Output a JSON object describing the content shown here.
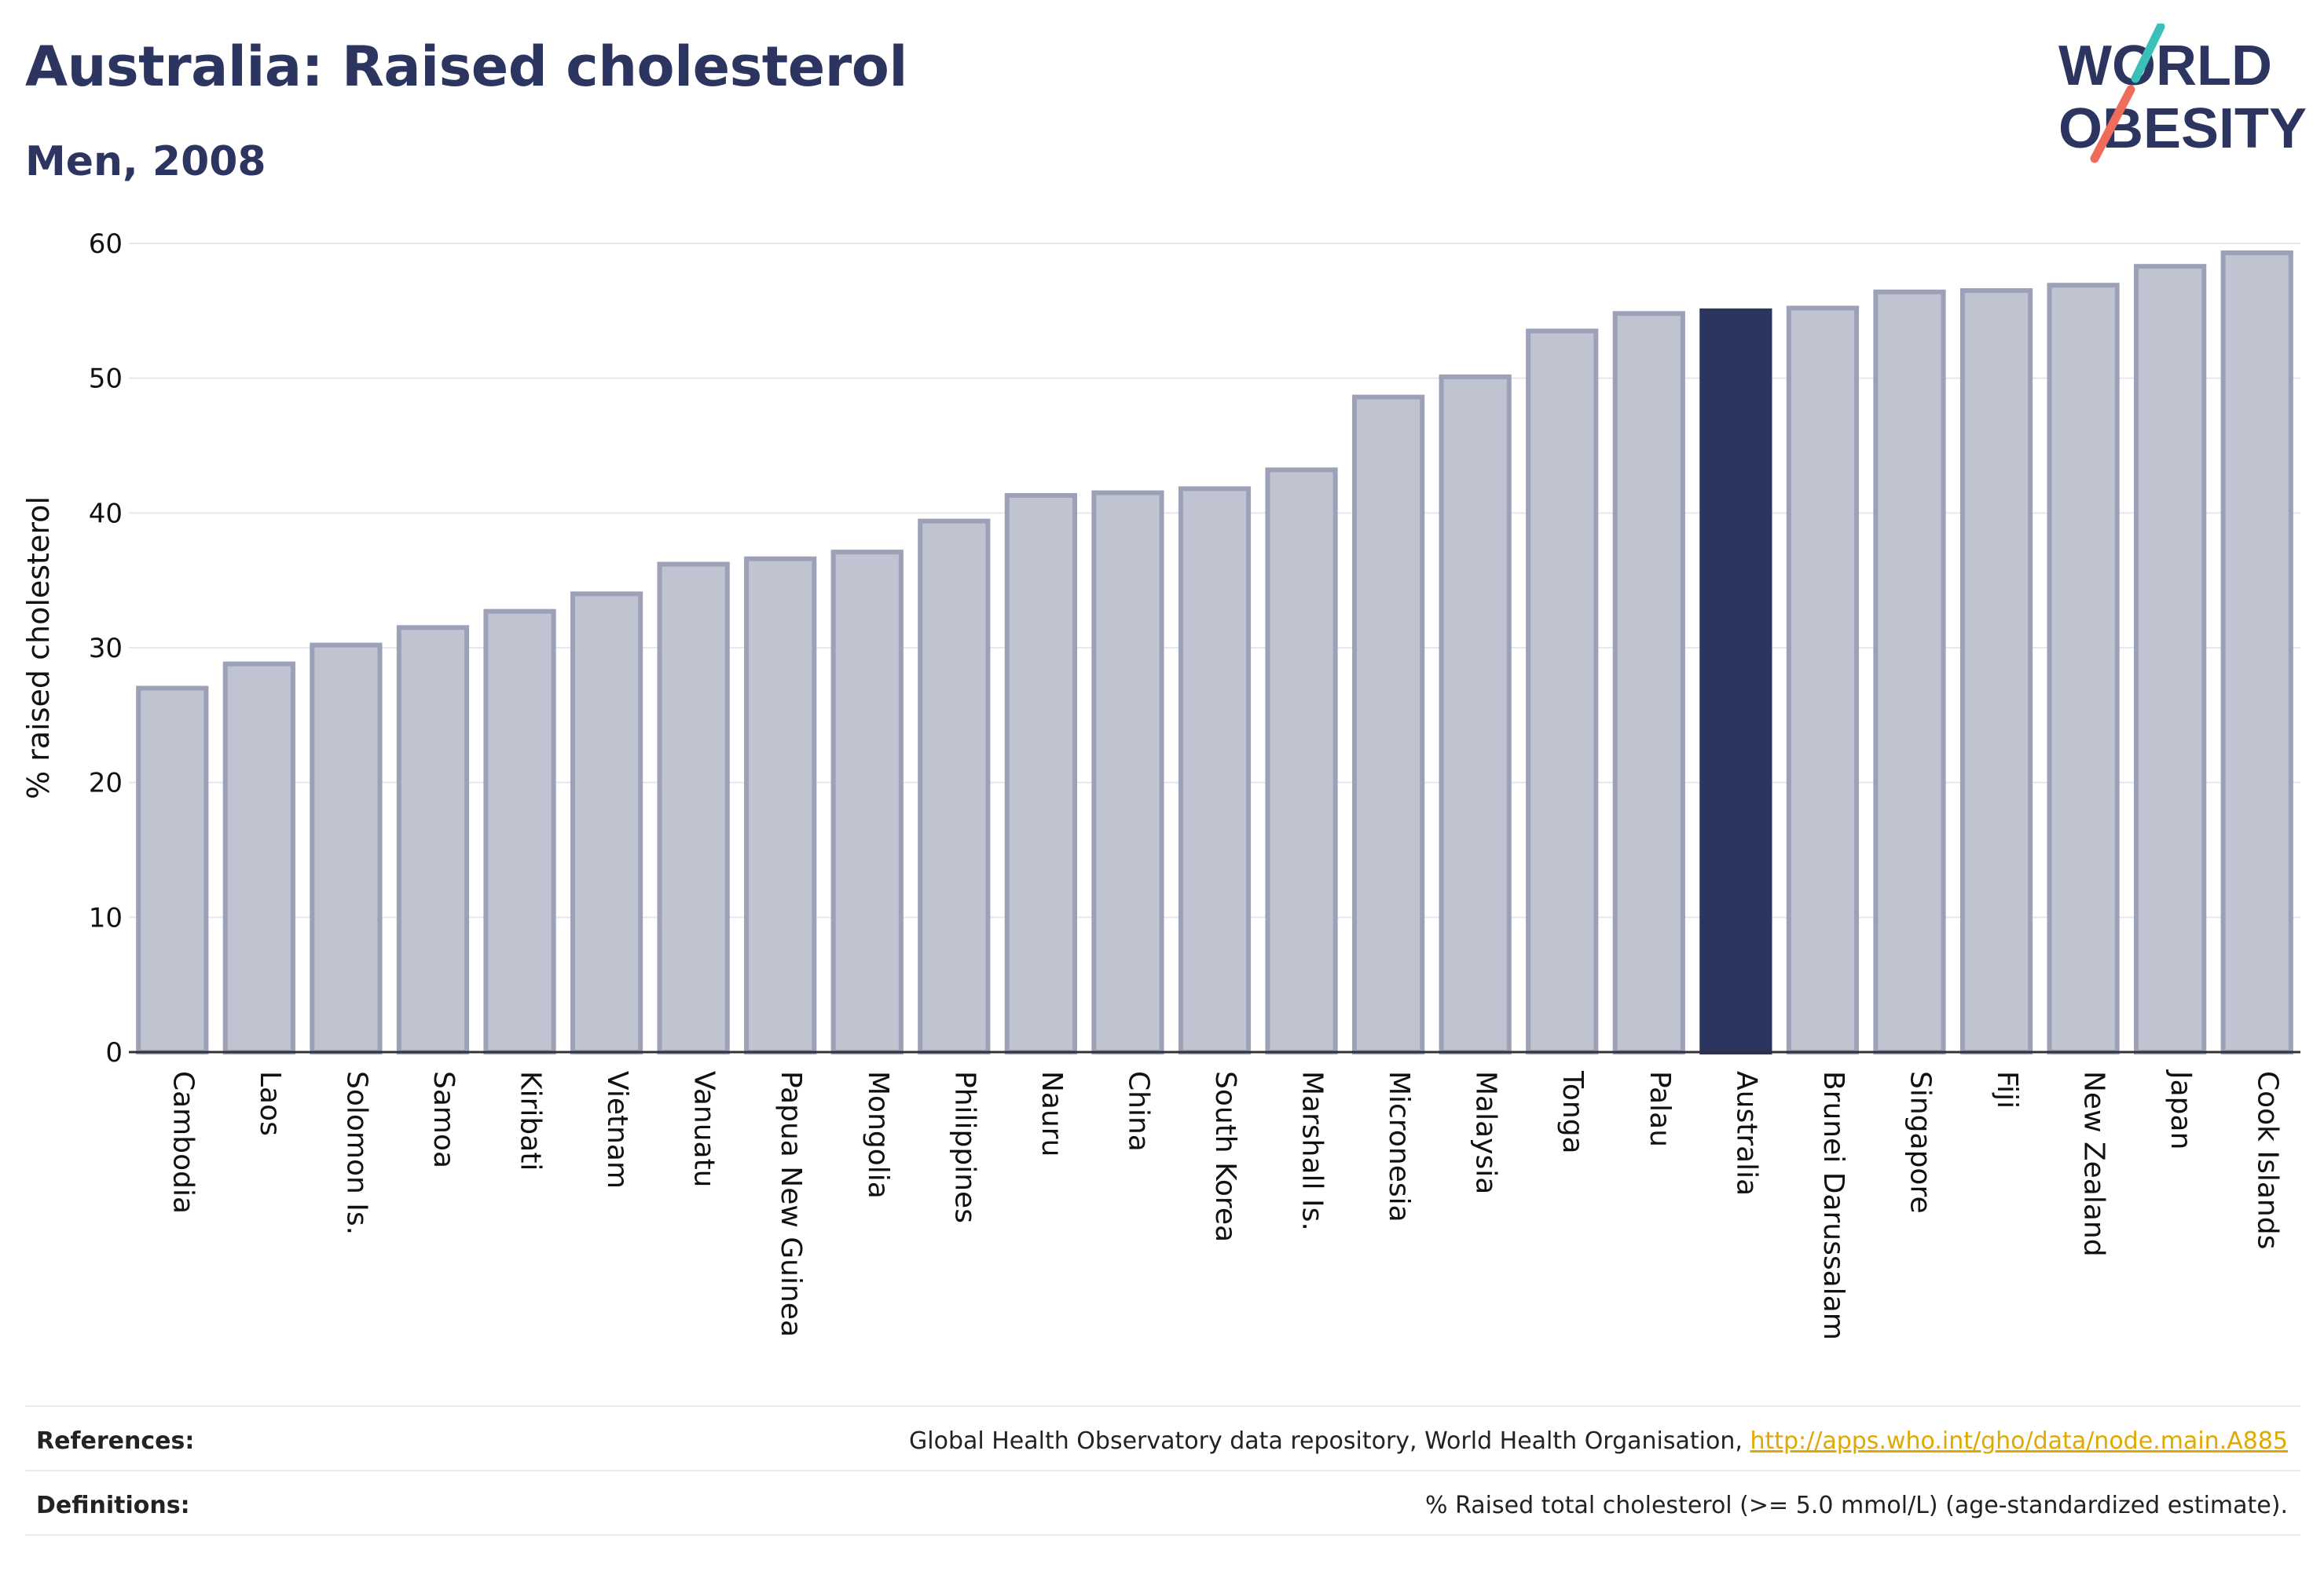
{
  "header": {
    "title": "Australia: Raised cholesterol",
    "subtitle": "Men, 2008"
  },
  "logo": {
    "line1": "WORLD",
    "line2": "OBESITY",
    "colors": {
      "text": "#2c3560",
      "slash_teal": "#3bbfb9",
      "slash_coral": "#ef6b5a"
    }
  },
  "chart_data": {
    "type": "bar",
    "ylabel": "% raised cholesterol",
    "ylim": [
      0,
      60
    ],
    "yticks": [
      0,
      10,
      20,
      30,
      40,
      50,
      60
    ],
    "grid": true,
    "highlight": "Australia",
    "colors": {
      "default_fill": "#c0c3d0",
      "default_stroke": "#9ca1b8",
      "highlight": "#2c3560"
    },
    "categories": [
      "Cambodia",
      "Laos",
      "Solomon Is.",
      "Samoa",
      "Kiribati",
      "Vietnam",
      "Vanuatu",
      "Papua New Guinea",
      "Mongolia",
      "Philippines",
      "Nauru",
      "China",
      "South Korea",
      "Marshall Is.",
      "Micronesia",
      "Malaysia",
      "Tonga",
      "Palau",
      "Australia",
      "Brunei Darussalam",
      "Singapore",
      "Fiji",
      "New Zealand",
      "Japan",
      "Cook Islands"
    ],
    "values": [
      27.0,
      28.8,
      30.2,
      31.5,
      32.7,
      34.0,
      36.2,
      36.6,
      37.1,
      39.4,
      41.3,
      41.5,
      41.8,
      43.2,
      48.6,
      50.1,
      53.5,
      54.8,
      55.0,
      55.2,
      56.4,
      56.5,
      56.9,
      58.3,
      59.3
    ]
  },
  "footer": {
    "references_label": "References:",
    "references_text": "Global Health Observatory data repository, World Health Organisation, ",
    "references_link": "http://apps.who.int/gho/data/node.main.A885",
    "definitions_label": "Definitions:",
    "definitions_text": "% Raised total cholesterol (>= 5.0 mmol/L) (age-standardized estimate)."
  }
}
